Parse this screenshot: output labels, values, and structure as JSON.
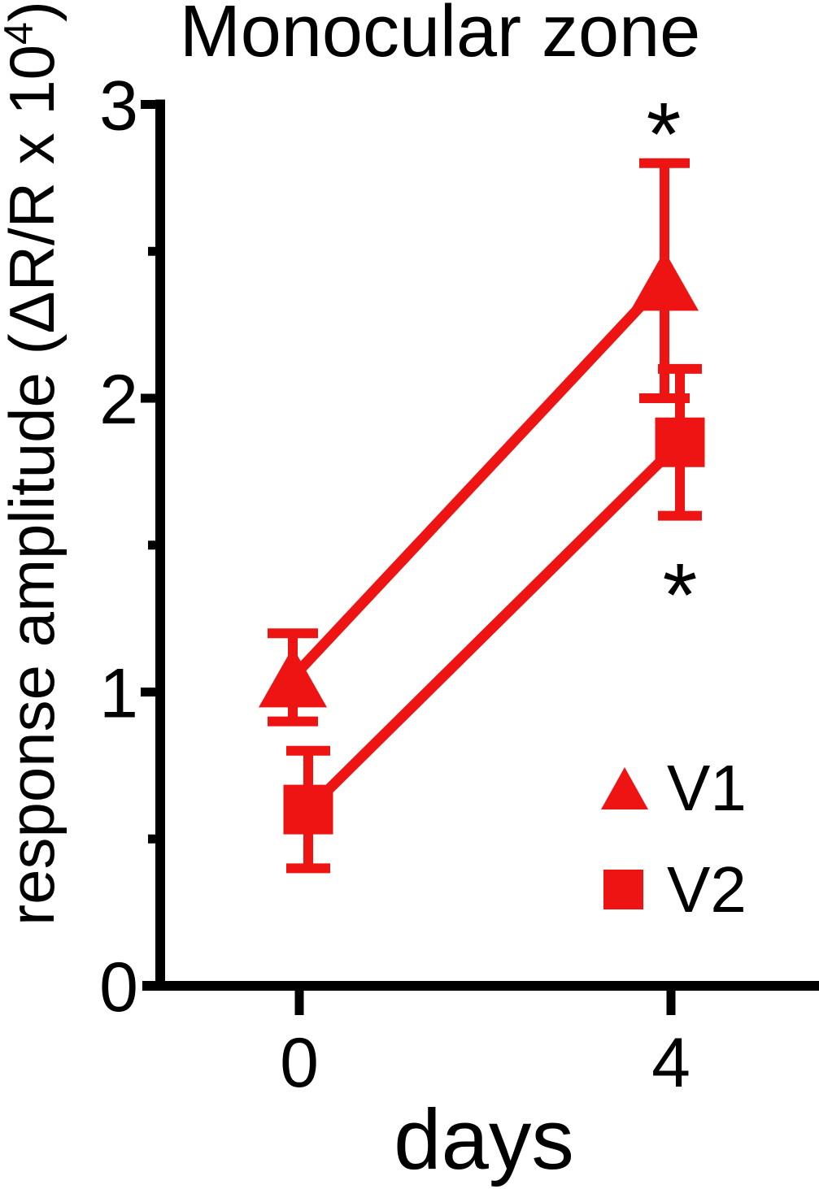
{
  "chart_data": {
    "type": "line",
    "title": "Monocular zone",
    "xlabel": "days",
    "ylabel": "response amplitude (ΔR/R x 10⁴)",
    "ylabel_parts": {
      "base": "response amplitude (ΔR/R x 10",
      "sup": "4",
      "close": ")"
    },
    "x": [
      0,
      4
    ],
    "xticks": [
      "0",
      "4"
    ],
    "yticks": [
      "0",
      "1",
      "2",
      "3"
    ],
    "ytick_values": [
      0,
      1,
      2,
      3
    ],
    "yminor_values": [
      0.5,
      1.5,
      2.5
    ],
    "ylim": [
      0,
      3
    ],
    "grid": false,
    "series": [
      {
        "name": "V1",
        "marker": "triangle",
        "values": [
          1.05,
          2.4
        ],
        "errors": [
          0.15,
          0.4
        ]
      },
      {
        "name": "V2",
        "marker": "square",
        "values": [
          0.6,
          1.85
        ],
        "errors": [
          0.2,
          0.25
        ]
      }
    ],
    "annotations": [
      {
        "text": "*",
        "day": 4,
        "series": "V1",
        "position": "above-error-bar"
      },
      {
        "text": "*",
        "day": 4,
        "series": "V2",
        "position": "below-error-bar"
      }
    ],
    "legend": {
      "position": "lower-right",
      "entries": [
        "V1",
        "V2"
      ]
    },
    "colors": {
      "series": "#EE1414",
      "text": "#000000",
      "axis": "#000000"
    }
  }
}
